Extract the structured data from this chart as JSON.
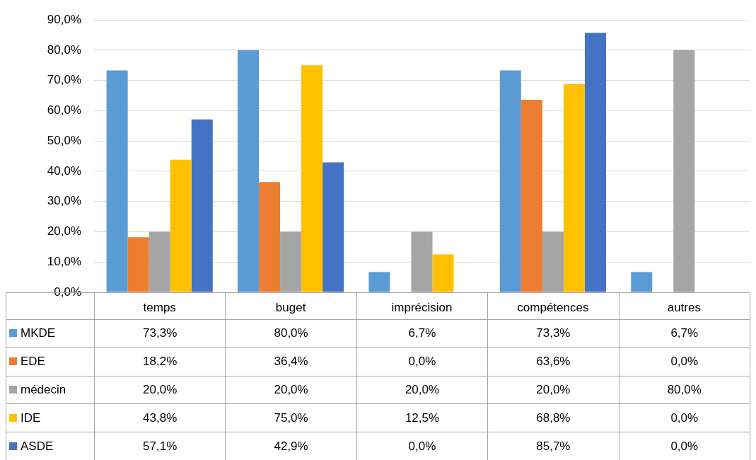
{
  "chart_data": {
    "type": "bar",
    "categories": [
      "temps",
      "buget",
      "imprécision",
      "compétences",
      "autres"
    ],
    "series": [
      {
        "name": "MKDE",
        "color": "#5b9bd5",
        "values": [
          73.3,
          80.0,
          6.7,
          73.3,
          6.7
        ],
        "value_labels": [
          "73,3%",
          "80,0%",
          "6,7%",
          "73,3%",
          "6,7%"
        ]
      },
      {
        "name": "EDE",
        "color": "#ed7d31",
        "values": [
          18.2,
          36.4,
          0.0,
          63.6,
          0.0
        ],
        "value_labels": [
          "18,2%",
          "36,4%",
          "0,0%",
          "63,6%",
          "0,0%"
        ]
      },
      {
        "name": "médecin",
        "color": "#a5a5a5",
        "values": [
          20.0,
          20.0,
          20.0,
          20.0,
          80.0
        ],
        "value_labels": [
          "20,0%",
          "20,0%",
          "20,0%",
          "20,0%",
          "80,0%"
        ]
      },
      {
        "name": "IDE",
        "color": "#ffc000",
        "values": [
          43.8,
          75.0,
          12.5,
          68.8,
          0.0
        ],
        "value_labels": [
          "43,8%",
          "75,0%",
          "12,5%",
          "68,8%",
          "0,0%"
        ]
      },
      {
        "name": "ASDE",
        "color": "#4472c4",
        "values": [
          57.1,
          42.9,
          0.0,
          85.7,
          0.0
        ],
        "value_labels": [
          "57,1%",
          "42,9%",
          "0,0%",
          "85,7%",
          "0,0%"
        ]
      }
    ],
    "ylim": [
      0,
      90
    ],
    "yticks": [
      {
        "value": 0,
        "label": "0,0%"
      },
      {
        "value": 10,
        "label": "10,0%"
      },
      {
        "value": 20,
        "label": "20,0%"
      },
      {
        "value": 30,
        "label": "30,0%"
      },
      {
        "value": 40,
        "label": "40,0%"
      },
      {
        "value": 50,
        "label": "50,0%"
      },
      {
        "value": 60,
        "label": "60,0%"
      },
      {
        "value": 70,
        "label": "70,0%"
      },
      {
        "value": 80,
        "label": "80,0%"
      },
      {
        "value": 90,
        "label": "90,0%"
      }
    ],
    "grid": "y",
    "legend": "bottom"
  }
}
